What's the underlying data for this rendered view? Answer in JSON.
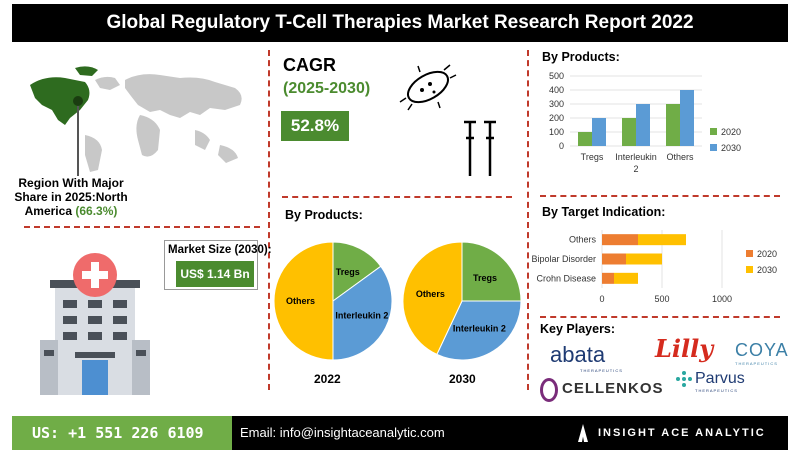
{
  "header": {
    "title": "Global Regulatory T-Cell Therapies Market Research Report 2022"
  },
  "region": {
    "line1": "Region With Major",
    "line2": "Share in 2025:North",
    "line3": "America",
    "share": "(66.3%)"
  },
  "cagr": {
    "title": "CAGR",
    "range": "(2025-2030)",
    "value": "52.8%"
  },
  "market": {
    "label": "Market Size (2030):",
    "value": "US$ 1.14 Bn"
  },
  "pies": {
    "title": "By Products:",
    "years": [
      "2022",
      "2030"
    ]
  },
  "colors": {
    "accent": "#4b8b2f",
    "red_dash": "#c0392b",
    "footer_green": "#70ad47",
    "orange": "#ed7d31",
    "blue": "#5b9bd5",
    "green": "#70ad47",
    "yellow": "#ffc000"
  },
  "products_chart_title": "By Products:",
  "target_chart_title": "By Target Indication:",
  "key_players": {
    "title": "Key Players:",
    "logos": [
      "abata",
      "THERAPEUTICS",
      "Lilly",
      "COYA",
      "THERAPEUTICS",
      "CELLENKOS",
      "Parvus",
      "THERAPEUTICS"
    ]
  },
  "footer": {
    "phone": "US: +1 551 226 6109",
    "email": "Email: info@insightaceanalytic.com",
    "brand": "INSIGHT ACE ANALYTIC"
  },
  "chart_data": [
    {
      "type": "bar",
      "title": "By Products:",
      "categories": [
        "Tregs",
        "Interleukin 2",
        "Others"
      ],
      "series": [
        {
          "name": "2020",
          "values": [
            100,
            200,
            300
          ],
          "color": "#70ad47"
        },
        {
          "name": "2030",
          "values": [
            200,
            300,
            400
          ],
          "color": "#5b9bd5"
        }
      ],
      "ylim": [
        0,
        500
      ],
      "yticks": [
        0,
        100,
        200,
        300,
        400,
        500
      ],
      "legend": "right"
    },
    {
      "type": "bar",
      "orientation": "horizontal",
      "stacked": true,
      "title": "By Target Indication:",
      "categories": [
        "Others",
        "Bipolar Disorder",
        "Crohn Disease"
      ],
      "series": [
        {
          "name": "2020",
          "values": [
            300,
            200,
            100
          ],
          "color": "#ed7d31"
        },
        {
          "name": "2030",
          "values": [
            400,
            300,
            200
          ],
          "color": "#ffc000"
        }
      ],
      "xlim": [
        0,
        1000
      ],
      "xticks": [
        0,
        500,
        1000
      ],
      "legend": "right"
    },
    {
      "type": "pie",
      "title": "2022",
      "labels": [
        "Tregs",
        "Interleukin 2",
        "Others"
      ],
      "values": [
        15,
        35,
        50
      ],
      "colors": [
        "#70ad47",
        "#5b9bd5",
        "#ffc000"
      ]
    },
    {
      "type": "pie",
      "title": "2030",
      "labels": [
        "Tregs",
        "Interleukin 2",
        "Others"
      ],
      "values": [
        25,
        32,
        43
      ],
      "colors": [
        "#70ad47",
        "#5b9bd5",
        "#ffc000"
      ]
    }
  ]
}
